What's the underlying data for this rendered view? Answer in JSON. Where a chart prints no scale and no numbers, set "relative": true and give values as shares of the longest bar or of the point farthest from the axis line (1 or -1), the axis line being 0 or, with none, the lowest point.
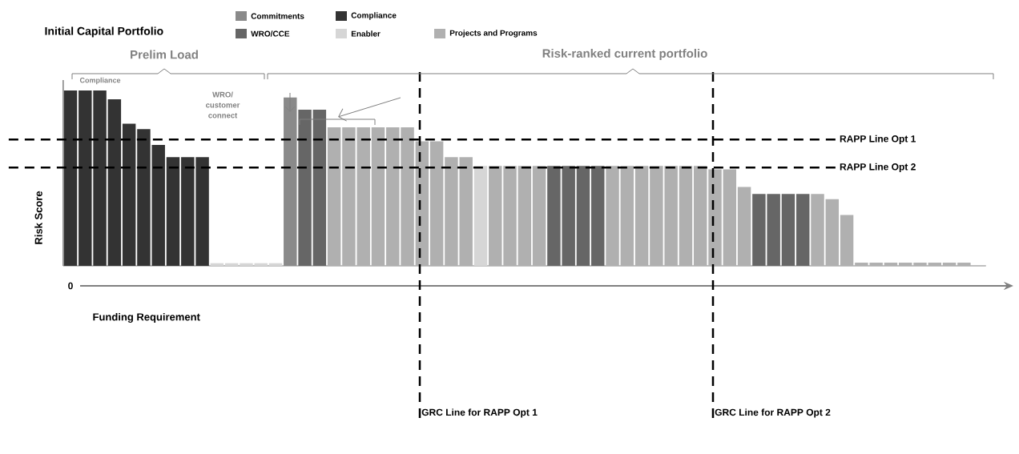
{
  "chart_data": {
    "type": "bar",
    "relative": true,
    "title": "Initial Capital Portfolio",
    "xlabel": "Funding Requirement",
    "ylabel": "Risk Score",
    "legend": "top",
    "categories": [
      null,
      null,
      null,
      null,
      null,
      null,
      null,
      null,
      null,
      null,
      null,
      null,
      null,
      null,
      null,
      null,
      null,
      null,
      null,
      null,
      null,
      null,
      null,
      null,
      null,
      null,
      null,
      null,
      null,
      null,
      null,
      null,
      null,
      null,
      null,
      null,
      null,
      null,
      null,
      null,
      null,
      null,
      null,
      null,
      null,
      null,
      null,
      null,
      null,
      null,
      null,
      null,
      null,
      null,
      null,
      null,
      null,
      null,
      null,
      null,
      null,
      null
    ],
    "values": [
      1,
      1,
      1,
      0.95,
      0.81,
      0.78,
      0.69,
      0.62,
      0.62,
      0.62,
      0.015,
      0.015,
      0.015,
      0.015,
      0.015,
      0.96,
      0.89,
      0.89,
      0.79,
      0.79,
      0.79,
      0.79,
      0.79,
      0.79,
      0.71,
      0.71,
      0.62,
      0.62,
      0.57,
      0.57,
      0.57,
      0.57,
      0.57,
      0.57,
      0.57,
      0.57,
      0.57,
      0.57,
      0.57,
      0.57,
      0.57,
      0.57,
      0.57,
      0.57,
      0.55,
      0.55,
      0.45,
      0.41,
      0.41,
      0.41,
      0.41,
      0.41,
      0.38,
      0.29,
      0.018,
      0.018,
      0.018,
      0.018,
      0.018,
      0.018,
      0.018,
      0.018
    ],
    "colors": [
      "#333333",
      "#333333",
      "#333333",
      "#333333",
      "#333333",
      "#333333",
      "#333333",
      "#333333",
      "#333333",
      "#333333",
      "#d6d6d6",
      "#d6d6d6",
      "#d6d6d6",
      "#d6d6d6",
      "#d6d6d6",
      "#8a8a8a",
      "#666666",
      "#666666",
      "#b0b0b0",
      "#b0b0b0",
      "#b0b0b0",
      "#b0b0b0",
      "#b0b0b0",
      "#b0b0b0",
      "#b0b0b0",
      "#b0b0b0",
      "#b0b0b0",
      "#b0b0b0",
      "#d6d6d6",
      "#b0b0b0",
      "#b0b0b0",
      "#b0b0b0",
      "#b0b0b0",
      "#666666",
      "#666666",
      "#666666",
      "#666666",
      "#b0b0b0",
      "#b0b0b0",
      "#b0b0b0",
      "#b0b0b0",
      "#b0b0b0",
      "#b0b0b0",
      "#b0b0b0",
      "#b0b0b0",
      "#b0b0b0",
      "#b0b0b0",
      "#666666",
      "#666666",
      "#666666",
      "#666666",
      "#b0b0b0",
      "#b0b0b0",
      "#b0b0b0",
      "#b0b0b0",
      "#b0b0b0",
      "#b0b0b0",
      "#b0b0b0",
      "#b0b0b0",
      "#b0b0b0",
      "#b0b0b0",
      "#b0b0b0"
    ],
    "ref_lines": [
      {
        "axis": "y",
        "value": 0.72,
        "label": "RAPP Line Opt 1",
        "line_style": "dashed"
      },
      {
        "axis": "y",
        "value": 0.56,
        "label": "RAPP Line Opt 2",
        "line_style": "dashed"
      }
    ],
    "annotations": [
      "Prelim Load",
      "Risk-ranked current portfolio",
      "Compliance",
      "WRO/ customer connect",
      "0",
      "Commitments",
      "WRO/CCE",
      "Compliance",
      "Enabler",
      "Projects and Programs",
      "GRC Line for RAPP Opt 1",
      "GRC Line for RAPP Opt 2"
    ]
  }
}
